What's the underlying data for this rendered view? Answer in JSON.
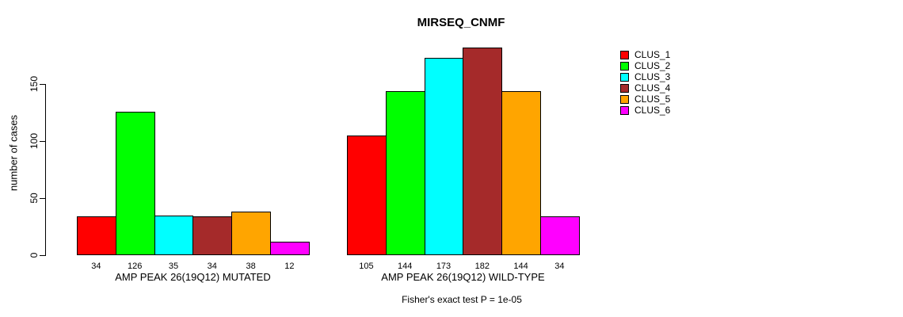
{
  "chart_data": {
    "type": "bar",
    "title": "MIRSEQ_CNMF",
    "ylabel": "number of cases",
    "yticks": [
      0,
      50,
      100,
      150
    ],
    "ylim": [
      0,
      190
    ],
    "grid": false,
    "legend_position": "right",
    "clusters": [
      {
        "name": "CLUS_1",
        "color": "#FF0000"
      },
      {
        "name": "CLUS_2",
        "color": "#00FF00"
      },
      {
        "name": "CLUS_3",
        "color": "#00FFFF"
      },
      {
        "name": "CLUS_4",
        "color": "#A52A2A"
      },
      {
        "name": "CLUS_5",
        "color": "#FFA500"
      },
      {
        "name": "CLUS_6",
        "color": "#FF00FF"
      }
    ],
    "groups": [
      {
        "label": "AMP PEAK 26(19Q12) MUTATED",
        "values": [
          34,
          126,
          35,
          34,
          38,
          12
        ]
      },
      {
        "label": "AMP PEAK 26(19Q12) WILD-TYPE",
        "values": [
          105,
          144,
          173,
          182,
          144,
          34
        ]
      }
    ],
    "footnote": "Fisher's exact test P = 1e-05",
    "axis_color": "#000000",
    "bar_border_color": "#000000"
  }
}
